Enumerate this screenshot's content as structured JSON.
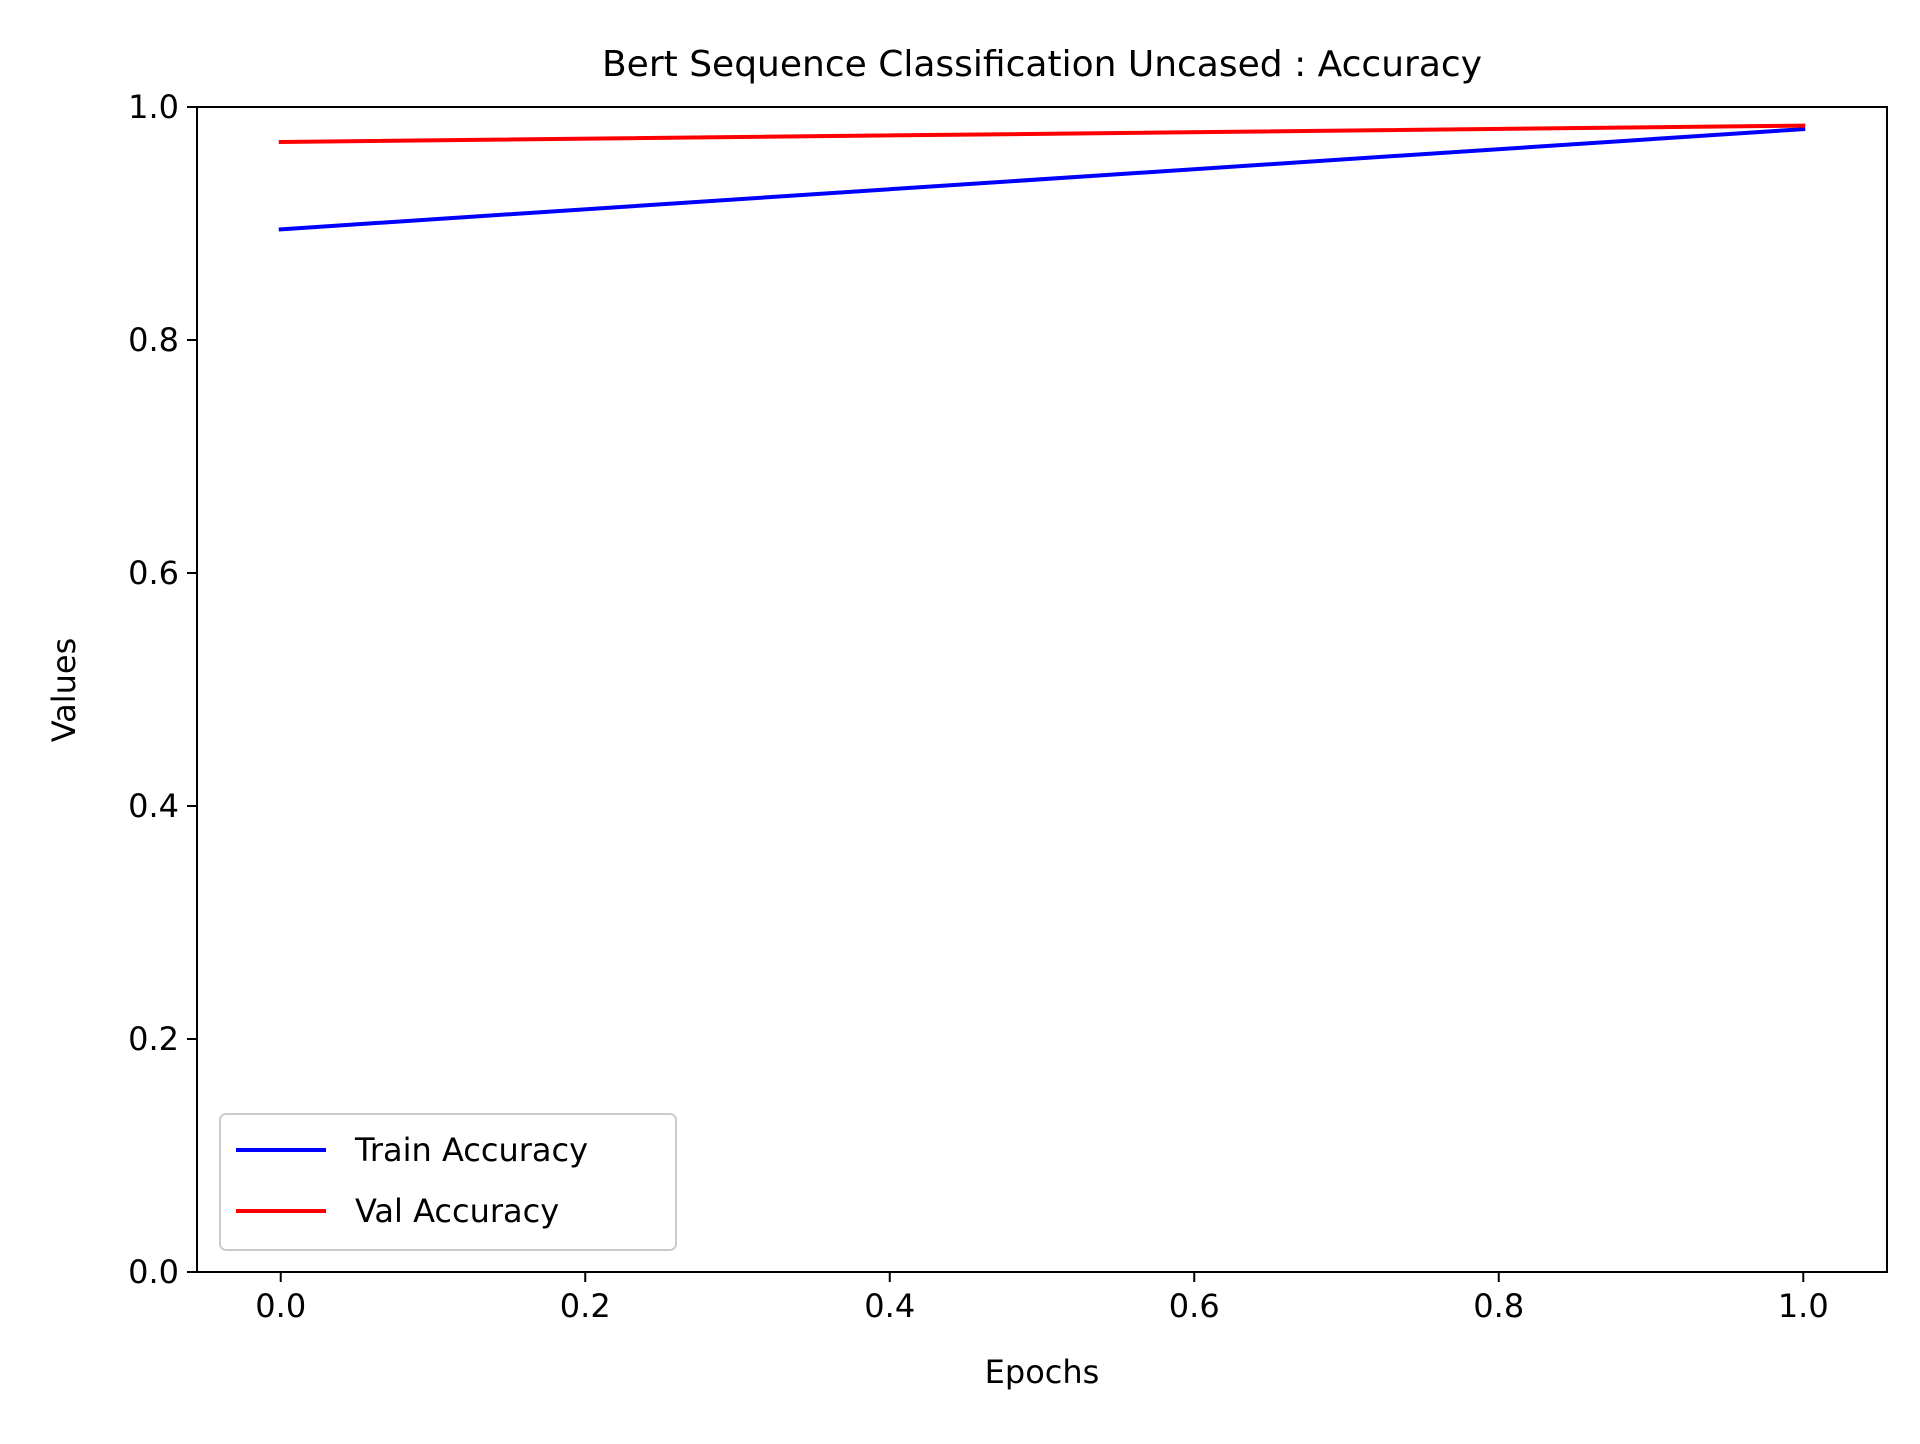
{
  "chart_data": {
    "type": "line",
    "title": "Bert Sequence Classification Uncased : Accuracy",
    "xlabel": "Epochs",
    "ylabel": "Values",
    "xlim": [
      -0.055,
      1.055
    ],
    "ylim": [
      0.0,
      1.0
    ],
    "x_ticks": [
      "0.0",
      "0.2",
      "0.4",
      "0.6",
      "0.8",
      "1.0"
    ],
    "x_tick_values": [
      0.0,
      0.2,
      0.4,
      0.6,
      0.8,
      1.0
    ],
    "y_ticks": [
      "0.0",
      "0.2",
      "0.4",
      "0.6",
      "0.8",
      "1.0"
    ],
    "y_tick_values": [
      0.0,
      0.2,
      0.4,
      0.6,
      0.8,
      1.0
    ],
    "grid": false,
    "legend_position": "lower-left",
    "series": [
      {
        "name": "Train Accuracy",
        "color": "#0000ff",
        "x": [
          0,
          1
        ],
        "y": [
          0.895,
          0.981
        ]
      },
      {
        "name": "Val Accuracy",
        "color": "#ff0000",
        "x": [
          0,
          1
        ],
        "y": [
          0.97,
          0.984
        ]
      }
    ]
  }
}
